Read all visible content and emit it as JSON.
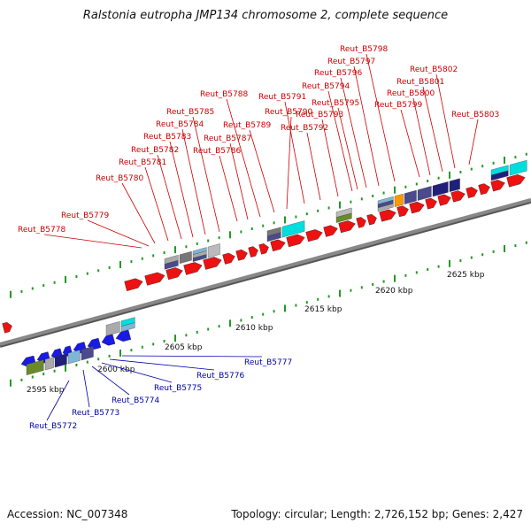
{
  "title": "Ralstonia eutropha JMP134 chromosome 2, complete sequence",
  "footer": {
    "accession": "Accession: NC_007348",
    "summary": "Topology: circular; Length: 2,726,152 bp; Genes: 2,427"
  },
  "colors": {
    "forward_gene": "#ee1111",
    "reverse_gene": "#1a1ae6",
    "forward_label": "#cc0000",
    "reverse_label": "#0000aa",
    "backbone": "#888888",
    "tick": "#229922",
    "cog_band_colors": [
      "#4a4a8c",
      "#777777",
      "#aaaaaa",
      "#00dddd",
      "#6a8a2a",
      "#ff9900",
      "#20207a",
      "#bbbbbb",
      "#7fb6d6"
    ]
  },
  "scale_labels": [
    "2595 kbp",
    "2600 kbp",
    "2605 kbp",
    "2610 kbp",
    "2615 kbp",
    "2620 kbp",
    "2625 kbp"
  ],
  "forward_labels": [
    "Reut_B5778",
    "Reut_B5779",
    "Reut_B5780",
    "Reut_B5781",
    "Reut_B5782",
    "Reut_B5783",
    "Reut_B5784",
    "Reut_B5785",
    "Reut_B5786",
    "Reut_B5787",
    "Reut_B5788",
    "Reut_B5789",
    "Reut_B5790",
    "Reut_B5791",
    "Reut_B5792",
    "Reut_B5793",
    "Reut_B5794",
    "Reut_B5795",
    "Reut_B5796",
    "Reut_B5797",
    "Reut_B5798",
    "Reut_B5799",
    "Reut_B5800",
    "Reut_B5801",
    "Reut_B5802",
    "Reut_B5803"
  ],
  "reverse_labels": [
    "Reut_B5772",
    "Reut_B5773",
    "Reut_B5774",
    "Reut_B5775",
    "Reut_B5776",
    "Reut_B5777"
  ]
}
